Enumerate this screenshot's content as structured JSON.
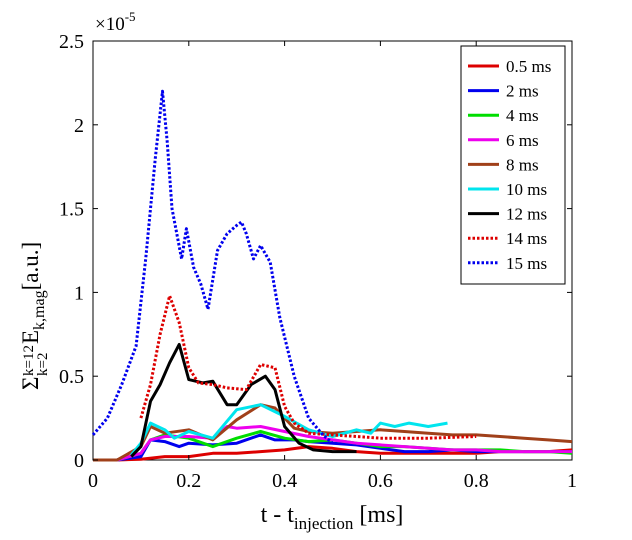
{
  "chart_data": {
    "type": "line",
    "title": "",
    "xlabel": {
      "main": "t - t",
      "sub": "injection",
      "unit": " [ms]"
    },
    "ylabel": {
      "sigma": "Σ",
      "sup": "k=12",
      "sub": "k=2",
      "e": " E",
      "esub": "k,mag",
      "unit": "[a.u.]"
    },
    "xlim": [
      0,
      1
    ],
    "ylim": [
      0,
      2.5
    ],
    "xticks": [
      0,
      0.2,
      0.4,
      0.6,
      0.8,
      1
    ],
    "xtick_labels": [
      "0",
      "0.2",
      "0.4",
      "0.6",
      "0.8",
      "1"
    ],
    "yticks": [
      0,
      0.5,
      1,
      1.5,
      2,
      2.5
    ],
    "ytick_labels": [
      "0",
      "0.5",
      "1",
      "1.5",
      "2",
      "2.5"
    ],
    "exponent": {
      "base": "×10",
      "power": "-5"
    },
    "legend_position": "top-right",
    "series": [
      {
        "name": "0.5 ms",
        "color": "#dd0000",
        "style": "solid",
        "x": [
          0,
          0.05,
          0.1,
          0.15,
          0.2,
          0.25,
          0.3,
          0.35,
          0.4,
          0.45,
          0.5,
          0.55,
          0.6,
          0.65,
          0.7,
          0.75,
          0.8,
          0.85,
          0.9,
          0.95,
          1.0
        ],
        "y": [
          0.0,
          0.0,
          0.005,
          0.02,
          0.02,
          0.04,
          0.04,
          0.05,
          0.06,
          0.08,
          0.07,
          0.05,
          0.04,
          0.04,
          0.04,
          0.04,
          0.04,
          0.05,
          0.05,
          0.05,
          0.06
        ]
      },
      {
        "name": "2 ms",
        "color": "#0000ee",
        "style": "solid",
        "x": [
          0,
          0.05,
          0.1,
          0.12,
          0.15,
          0.18,
          0.2,
          0.25,
          0.3,
          0.35,
          0.38,
          0.42,
          0.45,
          0.5,
          0.55,
          0.6,
          0.65,
          0.7,
          0.75,
          0.8,
          0.85,
          0.9,
          0.95,
          1.0
        ],
        "y": [
          0.0,
          0.0,
          0.02,
          0.12,
          0.11,
          0.08,
          0.1,
          0.09,
          0.1,
          0.15,
          0.12,
          0.12,
          0.11,
          0.1,
          0.09,
          0.07,
          0.05,
          0.05,
          0.06,
          0.05,
          0.05,
          0.05,
          0.05,
          0.05
        ]
      },
      {
        "name": "4 ms",
        "color": "#00dd00",
        "style": "solid",
        "x": [
          0,
          0.05,
          0.1,
          0.12,
          0.15,
          0.2,
          0.25,
          0.3,
          0.35,
          0.4,
          0.45,
          0.5,
          0.55,
          0.6,
          0.65,
          0.7,
          0.75,
          0.8,
          0.85,
          0.9,
          0.95,
          1.0
        ],
        "y": [
          0.0,
          0.0,
          0.04,
          0.12,
          0.15,
          0.13,
          0.08,
          0.13,
          0.17,
          0.13,
          0.11,
          0.12,
          0.1,
          0.08,
          0.08,
          0.07,
          0.06,
          0.06,
          0.06,
          0.05,
          0.05,
          0.04
        ]
      },
      {
        "name": "6 ms",
        "color": "#ee00ee",
        "style": "solid",
        "x": [
          0,
          0.05,
          0.1,
          0.12,
          0.15,
          0.2,
          0.25,
          0.28,
          0.3,
          0.35,
          0.4,
          0.45,
          0.5,
          0.55,
          0.6,
          0.65,
          0.7,
          0.75,
          0.8,
          0.85,
          0.9,
          0.95,
          1.0
        ],
        "y": [
          0.0,
          0.0,
          0.04,
          0.12,
          0.14,
          0.14,
          0.13,
          0.2,
          0.19,
          0.2,
          0.17,
          0.14,
          0.12,
          0.1,
          0.09,
          0.08,
          0.07,
          0.06,
          0.06,
          0.05,
          0.05,
          0.05,
          0.05
        ]
      },
      {
        "name": "8 ms",
        "color": "#a0401a",
        "style": "solid",
        "x": [
          0,
          0.05,
          0.1,
          0.12,
          0.15,
          0.2,
          0.25,
          0.3,
          0.35,
          0.38,
          0.42,
          0.45,
          0.5,
          0.55,
          0.6,
          0.65,
          0.7,
          0.75,
          0.8,
          0.85,
          0.9,
          0.95,
          1.0
        ],
        "y": [
          0.0,
          0.0,
          0.08,
          0.2,
          0.16,
          0.18,
          0.12,
          0.24,
          0.33,
          0.31,
          0.19,
          0.17,
          0.16,
          0.17,
          0.18,
          0.17,
          0.16,
          0.15,
          0.15,
          0.14,
          0.13,
          0.12,
          0.11
        ]
      },
      {
        "name": "10 ms",
        "color": "#00e5ee",
        "style": "solid",
        "x": [
          0.08,
          0.1,
          0.12,
          0.15,
          0.17,
          0.2,
          0.25,
          0.3,
          0.35,
          0.4,
          0.45,
          0.5,
          0.55,
          0.58,
          0.6,
          0.63,
          0.66,
          0.7,
          0.74
        ],
        "y": [
          0.03,
          0.1,
          0.22,
          0.18,
          0.13,
          0.17,
          0.13,
          0.3,
          0.33,
          0.26,
          0.18,
          0.14,
          0.18,
          0.16,
          0.22,
          0.2,
          0.22,
          0.2,
          0.22
        ]
      },
      {
        "name": "12 ms",
        "color": "#000000",
        "style": "solid",
        "x": [
          0.08,
          0.1,
          0.12,
          0.14,
          0.16,
          0.18,
          0.2,
          0.23,
          0.25,
          0.28,
          0.3,
          0.33,
          0.36,
          0.38,
          0.4,
          0.43,
          0.46,
          0.5,
          0.55
        ],
        "y": [
          0.02,
          0.08,
          0.35,
          0.45,
          0.58,
          0.69,
          0.48,
          0.46,
          0.47,
          0.33,
          0.33,
          0.45,
          0.5,
          0.42,
          0.2,
          0.1,
          0.06,
          0.05,
          0.05
        ]
      },
      {
        "name": "14 ms",
        "color": "#dd0000",
        "style": "dotted",
        "x": [
          0.1,
          0.12,
          0.14,
          0.16,
          0.18,
          0.2,
          0.22,
          0.25,
          0.28,
          0.32,
          0.35,
          0.38,
          0.4,
          0.42,
          0.45,
          0.5,
          0.55,
          0.6,
          0.7,
          0.8
        ],
        "y": [
          0.25,
          0.45,
          0.75,
          0.98,
          0.82,
          0.55,
          0.46,
          0.45,
          0.43,
          0.42,
          0.57,
          0.55,
          0.32,
          0.22,
          0.16,
          0.15,
          0.14,
          0.13,
          0.13,
          0.14
        ]
      },
      {
        "name": "15 ms",
        "color": "#0000ee",
        "style": "dotted",
        "x": [
          0,
          0.03,
          0.06,
          0.09,
          0.11,
          0.13,
          0.145,
          0.155,
          0.165,
          0.175,
          0.185,
          0.195,
          0.21,
          0.225,
          0.24,
          0.26,
          0.28,
          0.3,
          0.31,
          0.32,
          0.335,
          0.35,
          0.37,
          0.39,
          0.42,
          0.45,
          0.48,
          0.5
        ],
        "y": [
          0.15,
          0.25,
          0.45,
          0.68,
          1.2,
          1.8,
          2.2,
          1.9,
          1.5,
          1.35,
          1.2,
          1.38,
          1.15,
          1.05,
          0.9,
          1.25,
          1.35,
          1.4,
          1.42,
          1.35,
          1.2,
          1.28,
          1.18,
          0.85,
          0.5,
          0.25,
          0.15,
          0.1
        ]
      }
    ]
  }
}
